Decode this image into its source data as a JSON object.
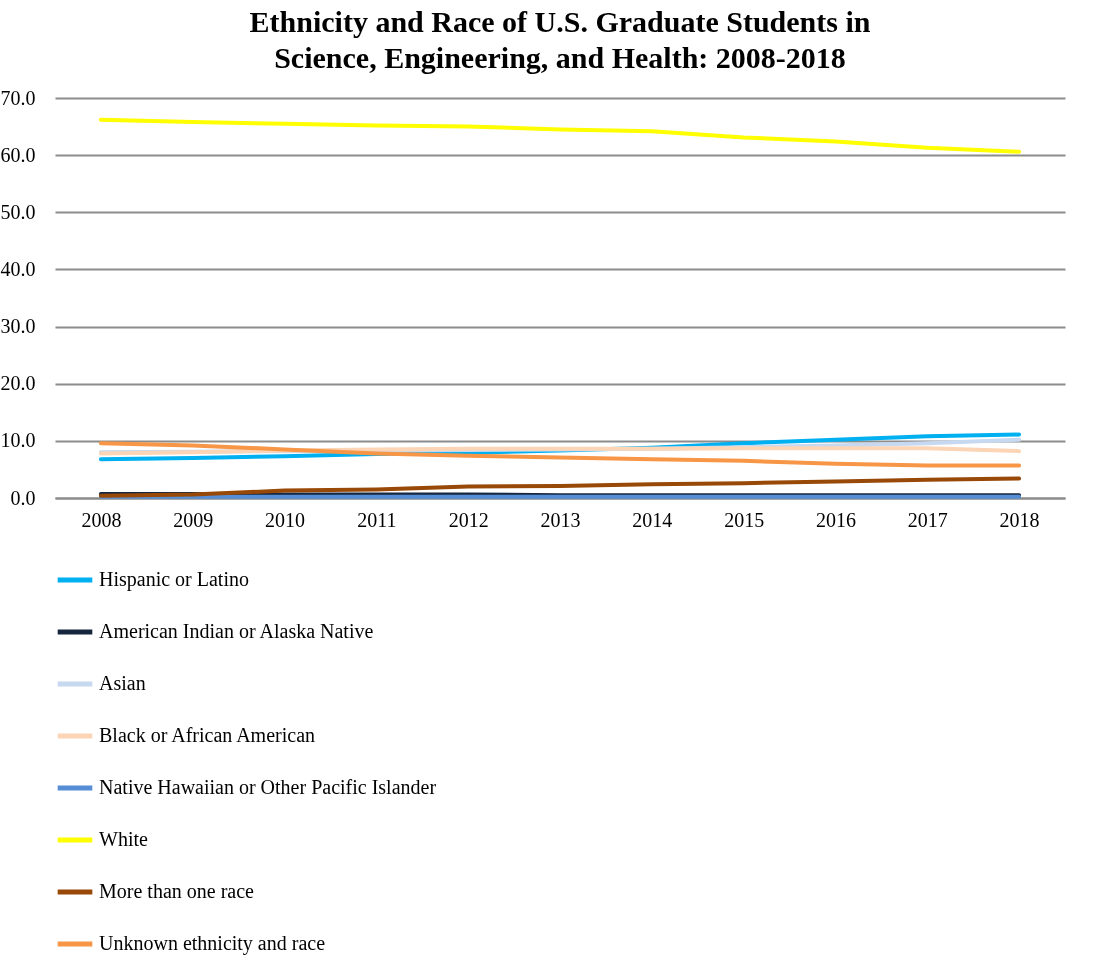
{
  "chart_data": {
    "type": "line",
    "title": [
      "Ethnicity and Race of U.S. Graduate Students in",
      "Science, Engineering, and Health: 2008-2018"
    ],
    "categories": [
      "2008",
      "2009",
      "2010",
      "2011",
      "2012",
      "2013",
      "2014",
      "2015",
      "2016",
      "2017",
      "2018"
    ],
    "ylim": [
      0,
      70
    ],
    "yticks": [
      {
        "value": 0,
        "label": "0.0"
      },
      {
        "value": 10,
        "label": "10.0"
      },
      {
        "value": 20,
        "label": "20.0"
      },
      {
        "value": 30,
        "label": "30.0"
      },
      {
        "value": 40,
        "label": "40.0"
      },
      {
        "value": 50,
        "label": "50.0"
      },
      {
        "value": 60,
        "label": "60.0"
      },
      {
        "value": 70,
        "label": "70.0"
      }
    ],
    "grid": "y",
    "legend": "bottom",
    "marker": "none",
    "line_style": "solid",
    "series": [
      {
        "name": "Hispanic or Latino",
        "color": "#00b0f0",
        "values": [
          6.8,
          7.0,
          7.3,
          7.7,
          7.9,
          8.3,
          8.8,
          9.6,
          10.2,
          10.8,
          11.1
        ]
      },
      {
        "name": "American Indian or Alaska Native",
        "color": "#17263f",
        "values": [
          0.7,
          0.7,
          0.6,
          0.6,
          0.6,
          0.5,
          0.5,
          0.5,
          0.5,
          0.5,
          0.5
        ]
      },
      {
        "name": "Asian",
        "color": "#c6d9f0",
        "values": [
          8.0,
          8.1,
          8.2,
          8.3,
          8.4,
          8.5,
          8.6,
          8.9,
          9.2,
          9.6,
          10.2
        ]
      },
      {
        "name": "Black or African American",
        "color": "#fbd5b5",
        "values": [
          7.8,
          8.0,
          8.3,
          8.5,
          8.6,
          8.6,
          8.6,
          8.7,
          8.7,
          8.7,
          8.2
        ]
      },
      {
        "name": "Native Hawaiian or Other Pacific Islander",
        "color": "#558ed5",
        "values": [
          0.2,
          0.2,
          0.2,
          0.2,
          0.2,
          0.2,
          0.2,
          0.2,
          0.2,
          0.2,
          0.2
        ]
      },
      {
        "name": "White",
        "color": "#ffff00",
        "values": [
          66.2,
          65.8,
          65.5,
          65.2,
          65.0,
          64.5,
          64.2,
          63.1,
          62.4,
          61.3,
          60.6
        ]
      },
      {
        "name": "More than one race",
        "color": "#984807",
        "values": [
          0.4,
          0.6,
          1.3,
          1.5,
          2.0,
          2.1,
          2.4,
          2.6,
          2.9,
          3.2,
          3.4
        ]
      },
      {
        "name": "Unknown ethnicity and race",
        "color": "#f79646",
        "values": [
          9.6,
          9.2,
          8.5,
          7.8,
          7.4,
          7.1,
          6.8,
          6.5,
          6.0,
          5.7,
          5.7
        ]
      }
    ]
  }
}
